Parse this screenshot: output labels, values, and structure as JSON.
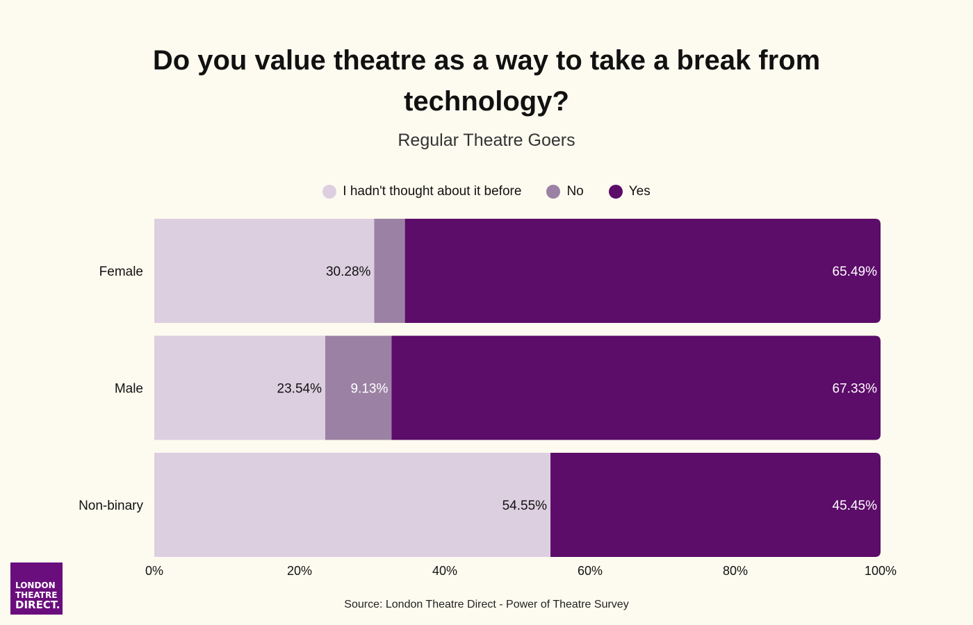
{
  "title": "Do you value theatre as a way to take a break from technology?",
  "subtitle": "Regular Theatre Goers",
  "source": "Source: London Theatre Direct - Power of Theatre Survey",
  "logo": {
    "line1": "LONDON",
    "line2": "THEATRE",
    "line3": "DIRECT."
  },
  "colors": {
    "background": "#fdfbef",
    "hadnt_thought": "#dccfe0",
    "no": "#9b82a4",
    "yes": "#5c0c69",
    "logo": "#6a0d7d"
  },
  "legend": [
    {
      "label": "I hadn't thought about it before",
      "color": "#dccfe0"
    },
    {
      "label": "No",
      "color": "#9b82a4"
    },
    {
      "label": "Yes",
      "color": "#5c0c69"
    }
  ],
  "chart_data": {
    "type": "bar",
    "orientation": "horizontal",
    "stacked": true,
    "title": "Do you value theatre as a way to take a break from technology?",
    "subtitle": "Regular Theatre Goers",
    "categories": [
      "Female",
      "Male",
      "Non-binary"
    ],
    "series": [
      {
        "name": "I hadn't thought about it before",
        "values": [
          30.28,
          23.54,
          54.55
        ],
        "labels": [
          "30.28%",
          "23.54%",
          "54.55%"
        ],
        "label_color": "#111111"
      },
      {
        "name": "No",
        "values": [
          4.23,
          9.13,
          0
        ],
        "labels": [
          "",
          "9.13%",
          ""
        ],
        "label_color": "#ffffff"
      },
      {
        "name": "Yes",
        "values": [
          65.49,
          67.33,
          45.45
        ],
        "labels": [
          "65.49%",
          "67.33%",
          "45.45%"
        ],
        "label_color": "#ffffff"
      }
    ],
    "xlim": [
      0,
      100
    ],
    "xticks": [
      "0%",
      "20%",
      "40%",
      "60%",
      "80%",
      "100%"
    ],
    "xlabel": "",
    "ylabel": "",
    "legend_position": "top-center",
    "grid": false
  }
}
